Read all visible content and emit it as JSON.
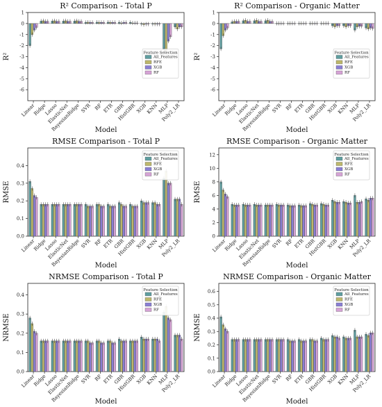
{
  "colors": {
    "All_Features": "#5f9ea0",
    "RFE": "#bdb76b",
    "XGB": "#8a7fd4",
    "RF": "#d6a3d6"
  },
  "chart_data": [
    {
      "type": "bar",
      "title": "R² Comparison - Total P",
      "xlabel": "Model",
      "ylabel": "R²",
      "ylim": [
        -7,
        1
      ],
      "yticks": [
        "-6",
        "-5",
        "-4",
        "-3",
        "-2",
        "-1",
        "0",
        "1"
      ],
      "categories": [
        "Linear",
        "Ridge",
        "Lasso",
        "ElasticNet",
        "BayesianRidge",
        "SVR",
        "RF",
        "ETR",
        "GBR",
        "HistGBR",
        "XGB",
        "KNN",
        "MLP",
        "Poly2_LR"
      ],
      "legend": {
        "title": "Feature Selection",
        "entries": [
          "All_Features",
          "RFE",
          "XGB",
          "RF"
        ],
        "position": "center-right"
      },
      "series": [
        {
          "name": "All_Features",
          "values": [
            -2.0,
            0.22,
            0.22,
            0.22,
            0.22,
            0.1,
            0.12,
            0.12,
            0.1,
            0.1,
            -0.05,
            -0.05,
            -2.4,
            -0.3
          ]
        },
        {
          "name": "RFE",
          "values": [
            -1.0,
            0.25,
            0.25,
            0.25,
            0.25,
            0.12,
            0.1,
            0.1,
            0.05,
            0.05,
            -0.1,
            -0.05,
            -2.5,
            -0.5
          ]
        },
        {
          "name": "XGB",
          "values": [
            -0.6,
            0.2,
            0.2,
            0.2,
            0.2,
            0.1,
            0.1,
            0.1,
            0.1,
            0.05,
            -0.05,
            -0.05,
            -1.6,
            -0.3
          ]
        },
        {
          "name": "RF",
          "values": [
            -0.35,
            0.2,
            0.2,
            0.2,
            0.2,
            0.1,
            0.1,
            0.1,
            0.1,
            0.05,
            -0.05,
            -0.05,
            -1.2,
            -0.3
          ]
        }
      ]
    },
    {
      "type": "bar",
      "title": "R² Comparison - Organic Matter",
      "xlabel": "Model",
      "ylabel": "R²",
      "ylim": [
        -7,
        1
      ],
      "yticks": [
        "-6",
        "-5",
        "-4",
        "-3",
        "-2",
        "-1",
        "0",
        "1"
      ],
      "categories": [
        "Linear",
        "Ridge",
        "Lasso",
        "ElasticNet",
        "BayesianRidge",
        "SVR",
        "RF",
        "ETR",
        "GBR",
        "HistGBR",
        "XGB",
        "KNN",
        "MLP",
        "Poly2_LR"
      ],
      "legend": {
        "title": "Feature Selection",
        "entries": [
          "All_Features",
          "RFE",
          "XGB",
          "RF"
        ],
        "position": "center-right"
      },
      "series": [
        {
          "name": "All_Features",
          "values": [
            -2.3,
            0.15,
            0.25,
            0.25,
            0.25,
            0.02,
            0.02,
            0.02,
            0.02,
            0.02,
            -0.2,
            -0.2,
            -0.6,
            -0.4
          ]
        },
        {
          "name": "RFE",
          "values": [
            -1.1,
            0.2,
            0.3,
            0.3,
            0.3,
            0.02,
            0.02,
            0.02,
            0.02,
            0.02,
            -0.3,
            -0.3,
            -0.3,
            -0.5
          ]
        },
        {
          "name": "XGB",
          "values": [
            -0.6,
            0.2,
            0.2,
            0.2,
            0.2,
            0.02,
            0.02,
            0.02,
            0.02,
            0.02,
            -0.2,
            -0.2,
            -0.25,
            -0.4
          ]
        },
        {
          "name": "RF",
          "values": [
            -0.4,
            0.2,
            0.2,
            0.2,
            0.2,
            0.02,
            0.02,
            0.02,
            0.02,
            0.02,
            -0.2,
            -0.2,
            -0.25,
            -0.45
          ]
        }
      ]
    },
    {
      "type": "bar",
      "title": "RMSE Comparison - Total P",
      "xlabel": "Model",
      "ylabel": "RMSE",
      "ylim": [
        0,
        0.5
      ],
      "yticks": [
        "0.0",
        "0.1",
        "0.2",
        "0.3",
        "0.4"
      ],
      "categories": [
        "Linear",
        "Ridge",
        "Lasso",
        "ElasticNet",
        "BayesianRidge",
        "SVR",
        "RF",
        "ETR",
        "GBR",
        "HistGBR",
        "XGB",
        "KNN",
        "MLP",
        "Poly2_LR"
      ],
      "legend": {
        "title": "Feature Selection",
        "entries": [
          "All_Features",
          "RFE",
          "XGB",
          "RF"
        ],
        "position": "top-right"
      },
      "series": [
        {
          "name": "All_Features",
          "values": [
            0.31,
            0.18,
            0.18,
            0.18,
            0.18,
            0.18,
            0.18,
            0.18,
            0.19,
            0.18,
            0.2,
            0.19,
            0.33,
            0.21
          ]
        },
        {
          "name": "RFE",
          "values": [
            0.27,
            0.18,
            0.18,
            0.18,
            0.18,
            0.17,
            0.18,
            0.17,
            0.18,
            0.17,
            0.19,
            0.19,
            0.37,
            0.21
          ]
        },
        {
          "name": "XGB",
          "values": [
            0.23,
            0.18,
            0.18,
            0.18,
            0.18,
            0.17,
            0.17,
            0.17,
            0.17,
            0.17,
            0.19,
            0.18,
            0.3,
            0.21
          ]
        },
        {
          "name": "RF",
          "values": [
            0.22,
            0.18,
            0.18,
            0.18,
            0.18,
            0.17,
            0.17,
            0.17,
            0.17,
            0.17,
            0.19,
            0.18,
            0.3,
            0.18
          ]
        }
      ]
    },
    {
      "type": "bar",
      "title": "RMSE Comparison - Organic Matter",
      "xlabel": "Model",
      "ylabel": "RMSE",
      "ylim": [
        0,
        13
      ],
      "yticks": [
        "0",
        "2",
        "4",
        "6",
        "8",
        "10",
        "12"
      ],
      "categories": [
        "Linear",
        "Ridge",
        "Lasso",
        "ElasticNet",
        "BayesianRidge",
        "SVR",
        "RF",
        "ETR",
        "GBR",
        "HistGBR",
        "XGB",
        "KNN",
        "MLP",
        "Poly2_LR"
      ],
      "legend": {
        "title": "Feature Selection",
        "entries": [
          "All_Features",
          "RFE",
          "XGB",
          "RF"
        ],
        "position": "top-right"
      },
      "series": [
        {
          "name": "All_Features",
          "values": [
            8.0,
            4.7,
            4.7,
            4.7,
            4.6,
            4.7,
            4.6,
            4.6,
            4.8,
            4.8,
            5.3,
            5.1,
            6.0,
            5.5
          ]
        },
        {
          "name": "RFE",
          "values": [
            6.8,
            4.6,
            4.6,
            4.6,
            4.6,
            4.6,
            4.5,
            4.5,
            4.7,
            4.7,
            5.1,
            5.0,
            5.0,
            5.3
          ]
        },
        {
          "name": "XGB",
          "values": [
            6.2,
            4.6,
            4.6,
            4.6,
            4.6,
            4.6,
            4.5,
            4.5,
            4.6,
            4.6,
            5.0,
            4.9,
            5.0,
            5.6
          ]
        },
        {
          "name": "RF",
          "values": [
            5.8,
            4.6,
            4.6,
            4.6,
            4.6,
            4.6,
            4.5,
            4.5,
            4.6,
            4.6,
            5.0,
            4.9,
            5.1,
            5.6
          ]
        }
      ]
    },
    {
      "type": "bar",
      "title": "NRMSE Comparison - Total P",
      "xlabel": "Model",
      "ylabel": "NRMSE",
      "ylim": [
        0,
        0.46
      ],
      "yticks": [
        "0.0",
        "0.1",
        "0.2",
        "0.3",
        "0.4"
      ],
      "categories": [
        "Linear",
        "Ridge",
        "Lasso",
        "ElasticNet",
        "BayesianRidge",
        "SVR",
        "RF",
        "ETR",
        "GBR",
        "HistGBR",
        "XGB",
        "KNN",
        "MLP",
        "Poly2_LR"
      ],
      "legend": {
        "title": "Feature Selection",
        "entries": [
          "All_Features",
          "RFE",
          "XGB",
          "RF"
        ],
        "position": "top-right"
      },
      "series": [
        {
          "name": "All_Features",
          "values": [
            0.28,
            0.16,
            0.16,
            0.16,
            0.16,
            0.16,
            0.16,
            0.16,
            0.17,
            0.16,
            0.18,
            0.17,
            0.31,
            0.19
          ]
        },
        {
          "name": "RFE",
          "values": [
            0.25,
            0.16,
            0.16,
            0.16,
            0.16,
            0.16,
            0.16,
            0.16,
            0.16,
            0.16,
            0.17,
            0.17,
            0.34,
            0.19
          ]
        },
        {
          "name": "XGB",
          "values": [
            0.21,
            0.16,
            0.16,
            0.16,
            0.16,
            0.15,
            0.15,
            0.15,
            0.16,
            0.16,
            0.17,
            0.17,
            0.28,
            0.19
          ]
        },
        {
          "name": "RF",
          "values": [
            0.2,
            0.16,
            0.16,
            0.16,
            0.16,
            0.15,
            0.15,
            0.15,
            0.16,
            0.16,
            0.17,
            0.16,
            0.27,
            0.17
          ]
        }
      ]
    },
    {
      "type": "bar",
      "title": "NRMSE Comparison - Organic Matter",
      "xlabel": "Model",
      "ylabel": "NRMSE",
      "ylim": [
        0,
        0.66
      ],
      "yticks": [
        "0.0",
        "0.1",
        "0.2",
        "0.3",
        "0.4",
        "0.5",
        "0.6"
      ],
      "categories": [
        "Linear",
        "Ridge",
        "Lasso",
        "ElasticNet",
        "BayesianRidge",
        "SVR",
        "RF",
        "ETR",
        "GBR",
        "HistGBR",
        "XGB",
        "KNN",
        "MLP",
        "Poly2_LR"
      ],
      "legend": {
        "title": "Feature Selection",
        "entries": [
          "All_Features",
          "RFE",
          "XGB",
          "RF"
        ],
        "position": "top-right"
      },
      "series": [
        {
          "name": "All_Features",
          "values": [
            0.41,
            0.24,
            0.24,
            0.24,
            0.24,
            0.24,
            0.24,
            0.24,
            0.24,
            0.25,
            0.27,
            0.26,
            0.31,
            0.28
          ]
        },
        {
          "name": "RFE",
          "values": [
            0.35,
            0.24,
            0.24,
            0.24,
            0.24,
            0.24,
            0.23,
            0.23,
            0.24,
            0.24,
            0.26,
            0.25,
            0.26,
            0.27
          ]
        },
        {
          "name": "XGB",
          "values": [
            0.32,
            0.24,
            0.24,
            0.24,
            0.24,
            0.24,
            0.23,
            0.23,
            0.23,
            0.24,
            0.26,
            0.25,
            0.26,
            0.29
          ]
        },
        {
          "name": "RF",
          "values": [
            0.3,
            0.24,
            0.24,
            0.24,
            0.24,
            0.24,
            0.23,
            0.23,
            0.23,
            0.24,
            0.25,
            0.25,
            0.26,
            0.29
          ]
        }
      ]
    }
  ]
}
